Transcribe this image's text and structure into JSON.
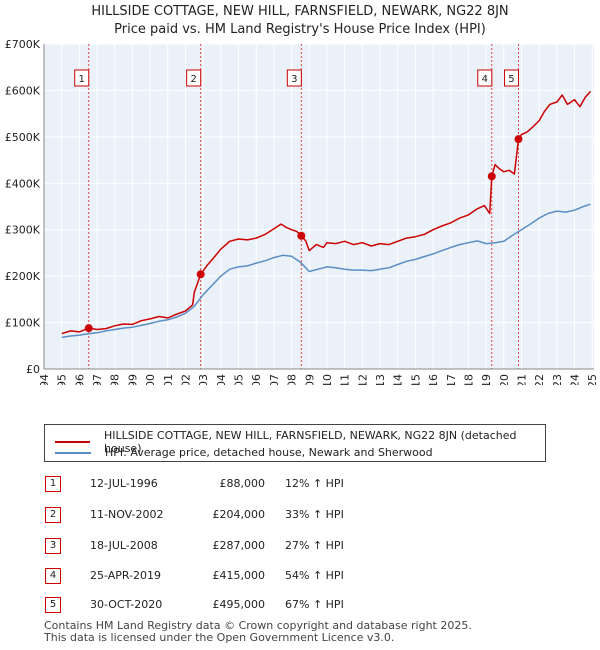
{
  "chart_data": {
    "type": "line",
    "title": "HILLSIDE COTTAGE, NEW HILL, FARNSFIELD, NEWARK, NG22 8JN",
    "subtitle": "Price paid vs. HM Land Registry's House Price Index (HPI)",
    "xlabel": "",
    "ylabel": "",
    "xlim": [
      1994,
      2025.1
    ],
    "ylim": [
      0,
      700000
    ],
    "y_ticks": [
      0,
      100000,
      200000,
      300000,
      400000,
      500000,
      600000,
      700000
    ],
    "y_tick_labels": [
      "£0",
      "£100K",
      "£200K",
      "£300K",
      "£400K",
      "£500K",
      "£600K",
      "£700K"
    ],
    "x_ticks": [
      "1994",
      "1995",
      "1996",
      "1997",
      "1998",
      "1999",
      "2000",
      "2001",
      "2002",
      "2003",
      "2004",
      "2005",
      "2006",
      "2007",
      "2008",
      "2009",
      "2010",
      "2011",
      "2012",
      "2013",
      "2014",
      "2015",
      "2016",
      "2017",
      "2018",
      "2019",
      "2020",
      "2021",
      "2022",
      "2023",
      "2024",
      "2025"
    ],
    "grid": true,
    "series": [
      {
        "name": "HILLSIDE COTTAGE, NEW HILL, FARNSFIELD, NEWARK, NG22 8JN (detached house)",
        "color": "#cc0000",
        "points": [
          [
            1995,
            76000
          ],
          [
            1995.5,
            82000
          ],
          [
            1996,
            80000
          ],
          [
            1996.53,
            88000
          ],
          [
            1997,
            85000
          ],
          [
            1997.5,
            87000
          ],
          [
            1998,
            93000
          ],
          [
            1998.5,
            97000
          ],
          [
            1999,
            96000
          ],
          [
            1999.5,
            104000
          ],
          [
            2000,
            108000
          ],
          [
            2000.5,
            113000
          ],
          [
            2001,
            110000
          ],
          [
            2001.5,
            118000
          ],
          [
            2002,
            125000
          ],
          [
            2002.4,
            138000
          ],
          [
            2002.5,
            165000
          ],
          [
            2002.86,
            204000
          ],
          [
            2003.2,
            222000
          ],
          [
            2003.6,
            240000
          ],
          [
            2004,
            258000
          ],
          [
            2004.5,
            275000
          ],
          [
            2005,
            280000
          ],
          [
            2005.5,
            278000
          ],
          [
            2006,
            282000
          ],
          [
            2006.5,
            290000
          ],
          [
            2007,
            302000
          ],
          [
            2007.4,
            312000
          ],
          [
            2007.7,
            305000
          ],
          [
            2008,
            300000
          ],
          [
            2008.3,
            296000
          ],
          [
            2008.55,
            287000
          ],
          [
            2008.8,
            276000
          ],
          [
            2009,
            255000
          ],
          [
            2009.4,
            268000
          ],
          [
            2009.8,
            262000
          ],
          [
            2010,
            272000
          ],
          [
            2010.5,
            270000
          ],
          [
            2011,
            275000
          ],
          [
            2011.5,
            268000
          ],
          [
            2012,
            272000
          ],
          [
            2012.5,
            265000
          ],
          [
            2013,
            270000
          ],
          [
            2013.5,
            268000
          ],
          [
            2014,
            275000
          ],
          [
            2014.5,
            282000
          ],
          [
            2015,
            285000
          ],
          [
            2015.5,
            290000
          ],
          [
            2016,
            300000
          ],
          [
            2016.5,
            308000
          ],
          [
            2017,
            315000
          ],
          [
            2017.5,
            325000
          ],
          [
            2018,
            332000
          ],
          [
            2018.5,
            345000
          ],
          [
            2018.9,
            352000
          ],
          [
            2019.2,
            335000
          ],
          [
            2019.32,
            415000
          ],
          [
            2019.5,
            440000
          ],
          [
            2019.8,
            430000
          ],
          [
            2020,
            425000
          ],
          [
            2020.3,
            428000
          ],
          [
            2020.6,
            420000
          ],
          [
            2020.83,
            495000
          ],
          [
            2021,
            505000
          ],
          [
            2021.3,
            510000
          ],
          [
            2021.6,
            520000
          ],
          [
            2022,
            535000
          ],
          [
            2022.3,
            555000
          ],
          [
            2022.6,
            570000
          ],
          [
            2023,
            575000
          ],
          [
            2023.3,
            590000
          ],
          [
            2023.6,
            570000
          ],
          [
            2024,
            580000
          ],
          [
            2024.3,
            565000
          ],
          [
            2024.6,
            585000
          ],
          [
            2024.9,
            598000
          ]
        ]
      },
      {
        "name": "HPI: Average price, detached house, Newark and Sherwood",
        "color": "#5b8ec4",
        "points": [
          [
            1995,
            68000
          ],
          [
            1995.5,
            71000
          ],
          [
            1996,
            73000
          ],
          [
            1996.5,
            76000
          ],
          [
            1997,
            78000
          ],
          [
            1997.5,
            82000
          ],
          [
            1998,
            85000
          ],
          [
            1998.5,
            88000
          ],
          [
            1999,
            90000
          ],
          [
            1999.5,
            94000
          ],
          [
            2000,
            98000
          ],
          [
            2000.5,
            103000
          ],
          [
            2001,
            106000
          ],
          [
            2001.5,
            112000
          ],
          [
            2002,
            120000
          ],
          [
            2002.5,
            135000
          ],
          [
            2003,
            160000
          ],
          [
            2003.5,
            180000
          ],
          [
            2004,
            200000
          ],
          [
            2004.5,
            215000
          ],
          [
            2005,
            220000
          ],
          [
            2005.5,
            222000
          ],
          [
            2006,
            228000
          ],
          [
            2006.5,
            233000
          ],
          [
            2007,
            240000
          ],
          [
            2007.5,
            245000
          ],
          [
            2008,
            243000
          ],
          [
            2008.5,
            230000
          ],
          [
            2009,
            210000
          ],
          [
            2009.5,
            215000
          ],
          [
            2010,
            220000
          ],
          [
            2010.5,
            218000
          ],
          [
            2011,
            215000
          ],
          [
            2011.5,
            213000
          ],
          [
            2012,
            213000
          ],
          [
            2012.5,
            212000
          ],
          [
            2013,
            215000
          ],
          [
            2013.5,
            218000
          ],
          [
            2014,
            225000
          ],
          [
            2014.5,
            232000
          ],
          [
            2015,
            236000
          ],
          [
            2015.5,
            242000
          ],
          [
            2016,
            248000
          ],
          [
            2016.5,
            255000
          ],
          [
            2017,
            262000
          ],
          [
            2017.5,
            268000
          ],
          [
            2018,
            272000
          ],
          [
            2018.5,
            276000
          ],
          [
            2019,
            270000
          ],
          [
            2019.5,
            272000
          ],
          [
            2020,
            275000
          ],
          [
            2020.5,
            288000
          ],
          [
            2021,
            300000
          ],
          [
            2021.5,
            312000
          ],
          [
            2022,
            325000
          ],
          [
            2022.5,
            335000
          ],
          [
            2023,
            340000
          ],
          [
            2023.5,
            338000
          ],
          [
            2024,
            342000
          ],
          [
            2024.5,
            350000
          ],
          [
            2024.9,
            355000
          ]
        ]
      }
    ],
    "sales": [
      {
        "id": "1",
        "x": 1996.53,
        "value": 88000
      },
      {
        "id": "2",
        "x": 2002.86,
        "value": 204000
      },
      {
        "id": "3",
        "x": 2008.55,
        "value": 287000
      },
      {
        "id": "4",
        "x": 2019.32,
        "value": 415000
      },
      {
        "id": "5",
        "x": 2020.83,
        "value": 495000
      }
    ]
  },
  "legend": {
    "property_label": "HILLSIDE COTTAGE, NEW HILL, FARNSFIELD, NEWARK, NG22 8JN (detached house)",
    "hpi_label": "HPI: Average price, detached house, Newark and Sherwood",
    "property_color": "#cc0000",
    "hpi_color": "#5b8ec4"
  },
  "transactions": [
    {
      "num": "1",
      "date": "12-JUL-1996",
      "price": "£88,000",
      "hpi": "12% ↑ HPI"
    },
    {
      "num": "2",
      "date": "11-NOV-2002",
      "price": "£204,000",
      "hpi": "33% ↑ HPI"
    },
    {
      "num": "3",
      "date": "18-JUL-2008",
      "price": "£287,000",
      "hpi": "27% ↑ HPI"
    },
    {
      "num": "4",
      "date": "25-APR-2019",
      "price": "£415,000",
      "hpi": "54% ↑ HPI"
    },
    {
      "num": "5",
      "date": "30-OCT-2020",
      "price": "£495,000",
      "hpi": "67% ↑ HPI"
    }
  ],
  "footer": {
    "line1": "Contains HM Land Registry data © Crown copyright and database right 2025.",
    "line2": "This data is licensed under the Open Government Licence v3.0."
  }
}
